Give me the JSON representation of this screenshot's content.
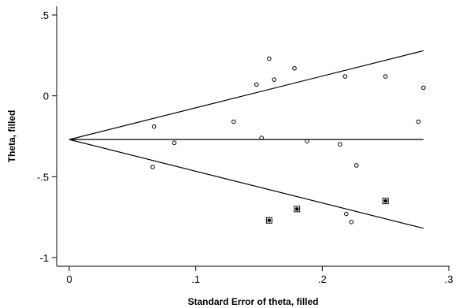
{
  "chart_data": {
    "type": "scatter",
    "title": "",
    "xlabel": "Standard Error of theta, filled",
    "ylabel": "Theta, filled",
    "xlim": [
      0,
      0.3
    ],
    "ylim": [
      -1,
      0.5
    ],
    "x_ticks": [
      {
        "value": 0,
        "label": "0"
      },
      {
        "value": 0.1,
        "label": ".1"
      },
      {
        "value": 0.2,
        "label": ".2"
      },
      {
        "value": 0.3,
        "label": ".3"
      }
    ],
    "y_ticks": [
      {
        "value": 0.5,
        "label": ".5"
      },
      {
        "value": 0,
        "label": "0"
      },
      {
        "value": -0.5,
        "label": "-.5"
      },
      {
        "value": -1,
        "label": "-1"
      }
    ],
    "pooled_estimate": -0.27,
    "funnel_x_end": 0.28,
    "funnel_upper_end": 0.279,
    "funnel_lower_end": -0.819,
    "observed": [
      {
        "x": 0.067,
        "y": -0.19
      },
      {
        "x": 0.066,
        "y": -0.44
      },
      {
        "x": 0.083,
        "y": -0.29
      },
      {
        "x": 0.13,
        "y": -0.16
      },
      {
        "x": 0.148,
        "y": 0.07
      },
      {
        "x": 0.152,
        "y": -0.26
      },
      {
        "x": 0.158,
        "y": 0.23
      },
      {
        "x": 0.162,
        "y": 0.1
      },
      {
        "x": 0.178,
        "y": 0.17
      },
      {
        "x": 0.188,
        "y": -0.28
      },
      {
        "x": 0.214,
        "y": -0.3
      },
      {
        "x": 0.218,
        "y": 0.12
      },
      {
        "x": 0.219,
        "y": -0.73
      },
      {
        "x": 0.223,
        "y": -0.78
      },
      {
        "x": 0.227,
        "y": -0.43
      },
      {
        "x": 0.25,
        "y": 0.12
      },
      {
        "x": 0.276,
        "y": -0.16
      },
      {
        "x": 0.28,
        "y": 0.05
      }
    ],
    "filled": [
      {
        "x": 0.158,
        "y": -0.77
      },
      {
        "x": 0.18,
        "y": -0.7
      },
      {
        "x": 0.25,
        "y": -0.65
      }
    ],
    "grid": false,
    "legend": "none"
  }
}
